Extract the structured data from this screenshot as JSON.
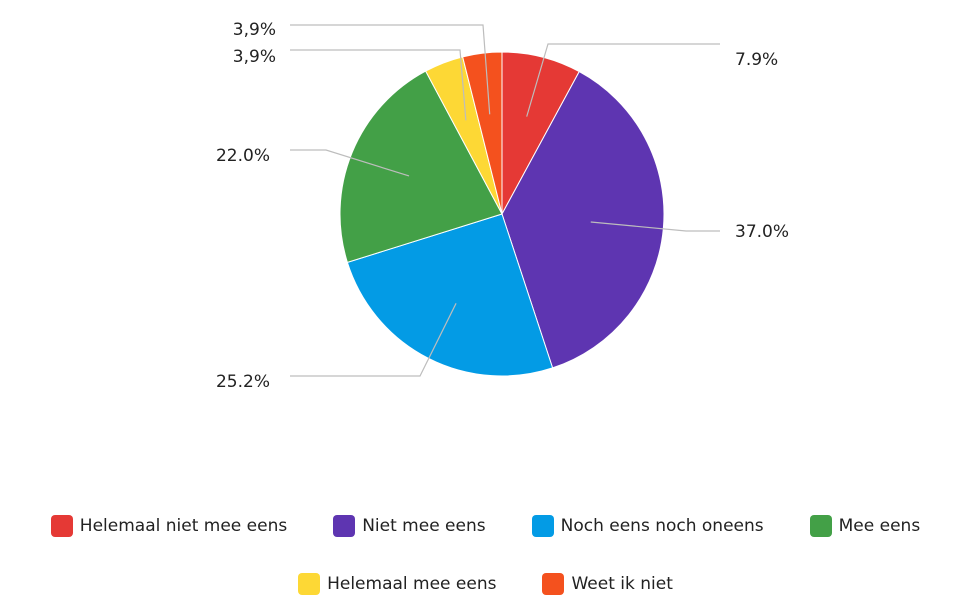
{
  "chart_data": {
    "type": "pie",
    "title": "",
    "slices": [
      {
        "name": "Helemaal niet mee eens",
        "value": 7.9,
        "label": "7.9%",
        "color": "#e53935"
      },
      {
        "name": "Niet mee eens",
        "value": 37.0,
        "label": "37.0%",
        "color": "#5e35b1"
      },
      {
        "name": "Noch eens noch oneens",
        "value": 25.2,
        "label": "25.2%",
        "color": "#039be5"
      },
      {
        "name": "Mee eens",
        "value": 22.0,
        "label": "22.0%",
        "color": "#43a047"
      },
      {
        "name": "Helemaal mee eens",
        "value": 3.9,
        "label": "3,9%",
        "color": "#fdd835"
      },
      {
        "name": "Weet ik niet",
        "value": 3.9,
        "label": "3,9%",
        "color": "#f4511e"
      }
    ],
    "start_angle_deg": 0,
    "direction": "clockwise",
    "legend_position": "bottom"
  }
}
